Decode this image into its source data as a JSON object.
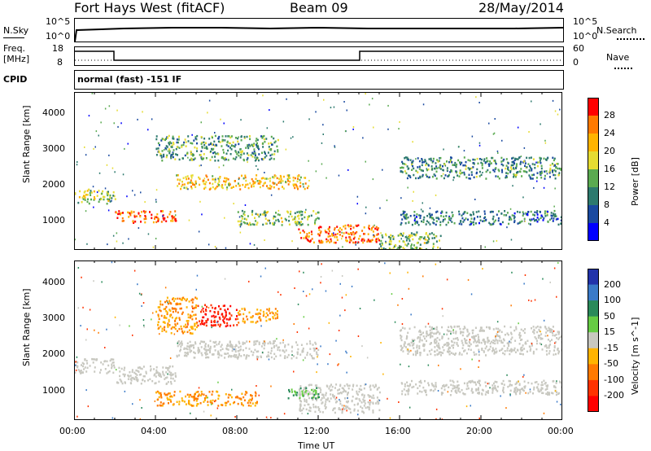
{
  "header": {
    "title": "Fort Hays West (fitACF)",
    "beam": "Beam 09",
    "date": "28/May/2014"
  },
  "strips": {
    "nsky_label": "N.Sky",
    "nsearch_label": "N.Search",
    "nsky_ticks": [
      "10^5",
      "10^0"
    ],
    "nsearch_ticks": [
      "10^5",
      "10^0"
    ],
    "freq_label_line1": "Freq.",
    "freq_label_line2": "[MHz]",
    "freq_ticks": [
      "18",
      "8"
    ],
    "nave_label": "Nave",
    "nave_ticks": [
      "60",
      "0"
    ],
    "cpid_label": "CPID",
    "cpid_text": "normal (fast) -151 IF"
  },
  "chart_data": [
    {
      "type": "heatmap",
      "name": "power-panel",
      "ylabel": "Slant Range [km]",
      "xlabel": "",
      "xlim": [
        0,
        24
      ],
      "ylim": [
        180,
        4600
      ],
      "yticks": [
        "1000",
        "2000",
        "3000",
        "4000"
      ],
      "colorbar": {
        "label": "Power [dB]",
        "ticks": [
          "28",
          "24",
          "20",
          "16",
          "12",
          "8",
          "4"
        ],
        "colors": [
          "#ff0000",
          "#ff7a00",
          "#ffb400",
          "#e6dc32",
          "#5aaa50",
          "#2d7a6e",
          "#1a4aa0",
          "#0000ff"
        ]
      },
      "echo_bands": [
        {
          "t": [
            0.0,
            2.0
          ],
          "range": [
            1500,
            1900
          ],
          "level": 16
        },
        {
          "t": [
            2.0,
            5.0
          ],
          "range": [
            950,
            1300
          ],
          "level": 28
        },
        {
          "t": [
            5.0,
            11.5
          ],
          "range": [
            1900,
            2300
          ],
          "level": 22
        },
        {
          "t": [
            4.0,
            10.0
          ],
          "range": [
            2700,
            3400
          ],
          "level": 12
        },
        {
          "t": [
            8.0,
            12.0
          ],
          "range": [
            900,
            1300
          ],
          "level": 14
        },
        {
          "t": [
            11.0,
            15.0
          ],
          "range": [
            400,
            900
          ],
          "level": 28
        },
        {
          "t": [
            15.0,
            18.0
          ],
          "range": [
            200,
            700
          ],
          "level": 14
        },
        {
          "t": [
            16.0,
            24.0
          ],
          "range": [
            2200,
            2800
          ],
          "level": 10
        },
        {
          "t": [
            16.0,
            24.0
          ],
          "range": [
            900,
            1300
          ],
          "level": 8
        }
      ]
    },
    {
      "type": "heatmap",
      "name": "velocity-panel",
      "ylabel": "Slant Range [km]",
      "xlabel": "Time UT",
      "xlim": [
        0,
        24
      ],
      "ylim": [
        180,
        4600
      ],
      "xticks": [
        "00:00",
        "04:00",
        "08:00",
        "12:00",
        "16:00",
        "20:00",
        "00:00"
      ],
      "yticks": [
        "1000",
        "2000",
        "3000",
        "4000"
      ],
      "colorbar": {
        "label": "Velocity [m s^-1]",
        "ticks": [
          "200",
          "100",
          "50",
          "15",
          "-15",
          "-50",
          "-100",
          "-200"
        ],
        "colors": [
          "#2233aa",
          "#3a7ac8",
          "#2a8a5a",
          "#66cc44",
          "#c8c8c0",
          "#ffb400",
          "#ff7a00",
          "#ff3300",
          "#ff0000"
        ]
      },
      "echo_bands": [
        {
          "t": [
            0.0,
            2.0
          ],
          "range": [
            1500,
            1900
          ],
          "v": 0
        },
        {
          "t": [
            2.0,
            5.0
          ],
          "range": [
            1200,
            1700
          ],
          "v": 0
        },
        {
          "t": [
            5.0,
            12.0
          ],
          "range": [
            1900,
            2400
          ],
          "v": 0
        },
        {
          "t": [
            6.0,
            8.0
          ],
          "range": [
            2800,
            3400
          ],
          "v": -200
        },
        {
          "t": [
            4.0,
            6.0
          ],
          "range": [
            2600,
            3600
          ],
          "v": -50
        },
        {
          "t": [
            8.0,
            10.0
          ],
          "range": [
            2900,
            3300
          ],
          "v": -50
        },
        {
          "t": [
            4.0,
            9.0
          ],
          "range": [
            600,
            1000
          ],
          "v": -50
        },
        {
          "t": [
            11.0,
            15.0
          ],
          "range": [
            400,
            1200
          ],
          "v": 0
        },
        {
          "t": [
            10.5,
            12.0
          ],
          "range": [
            800,
            1100
          ],
          "v": 50
        },
        {
          "t": [
            16.0,
            24.0
          ],
          "range": [
            2000,
            2800
          ],
          "v": 0
        },
        {
          "t": [
            16.0,
            24.0
          ],
          "range": [
            900,
            1300
          ],
          "v": 0
        }
      ]
    }
  ]
}
